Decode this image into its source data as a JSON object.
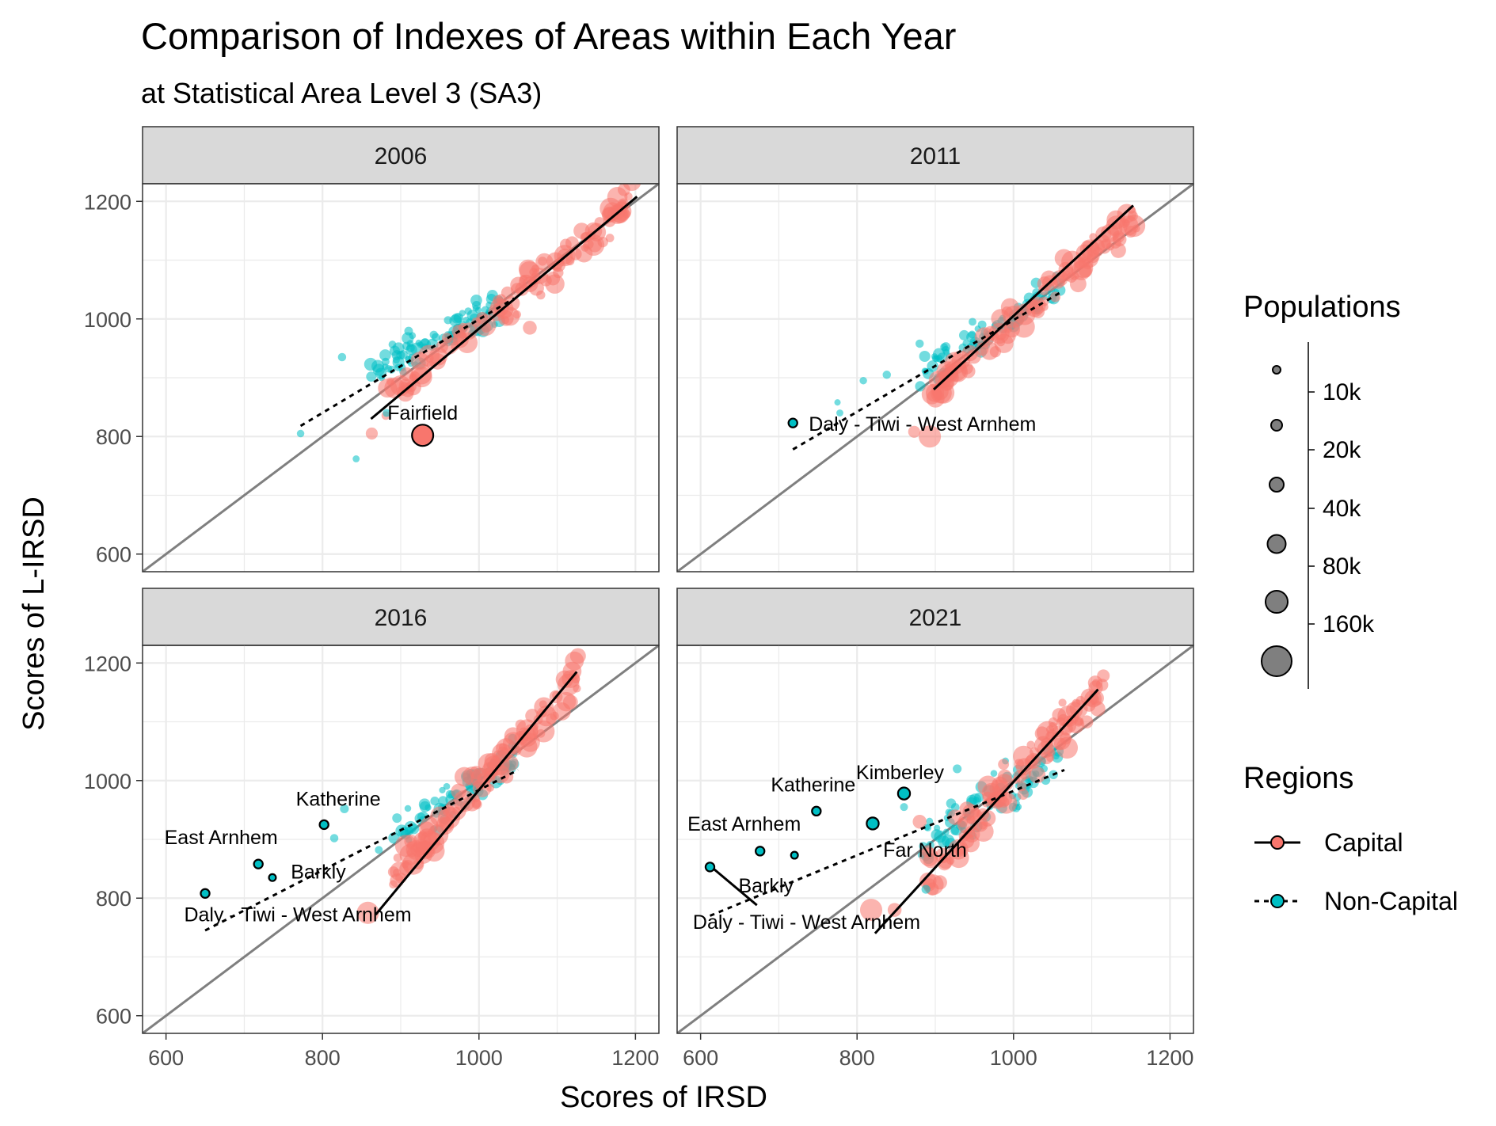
{
  "chart_data": {
    "type": "scatter",
    "title": "Comparison of Indexes of Areas within Each Year",
    "subtitle": "at Statistical Area Level 3 (SA3)",
    "xlabel": "Scores of IRSD",
    "ylabel": "Scores of L-IRSD",
    "xlim": [
      570,
      1230
    ],
    "ylim": [
      570,
      1230
    ],
    "x_ticks": [
      600,
      800,
      1000,
      1200
    ],
    "y_ticks": [
      600,
      800,
      1000,
      1200
    ],
    "grid": true,
    "reference_line": "y = x",
    "colors": {
      "Capital": "#F8766D",
      "Non-Capital": "#00BFC4",
      "reference_line": "#7f7f7f",
      "strip": "#d9d9d9"
    },
    "legend": {
      "size_title": "Populations",
      "size_labels": [
        "10k",
        "20k",
        "40k",
        "80k",
        "160k"
      ],
      "color_title": "Regions",
      "color_labels": [
        "Capital",
        "Non-Capital"
      ],
      "position": "right"
    },
    "panels": [
      {
        "year": "2006",
        "trend": {
          "Capital": [
            [
              862,
              830
            ],
            [
              1202,
              1208
            ]
          ],
          "Non-Capital": [
            [
              772,
              818
            ],
            [
              1045,
              1035
            ]
          ]
        },
        "labeled_points": [
          {
            "name": "Fairfield",
            "region": "Capital",
            "x": 928,
            "y": 802,
            "pop": 180
          }
        ],
        "clouds": [
          {
            "region": "Non-Capital",
            "n": 95,
            "x": [
              860,
              1030
            ],
            "slope": 0.72,
            "intercept": 285,
            "spread": 22,
            "pop": [
              4,
              50
            ]
          },
          {
            "region": "Capital",
            "n": 110,
            "x": [
              880,
              1205
            ],
            "slope": 1.08,
            "intercept": -90,
            "spread": 22,
            "pop": [
              10,
              200
            ]
          }
        ],
        "extra_points": [
          {
            "region": "Non-Capital",
            "x": 772,
            "y": 805,
            "pop": 8
          },
          {
            "region": "Non-Capital",
            "x": 843,
            "y": 762,
            "pop": 6
          },
          {
            "region": "Non-Capital",
            "x": 825,
            "y": 935,
            "pop": 12
          },
          {
            "region": "Non-Capital",
            "x": 882,
            "y": 840,
            "pop": 10
          },
          {
            "region": "Capital",
            "x": 863,
            "y": 805,
            "pop": 40
          },
          {
            "region": "Capital",
            "x": 1065,
            "y": 985,
            "pop": 60
          }
        ]
      },
      {
        "year": "2011",
        "trend": {
          "Capital": [
            [
              898,
              880
            ],
            [
              1153,
              1193
            ]
          ],
          "Non-Capital": [
            [
              718,
              778
            ],
            [
              1060,
              1045
            ]
          ]
        },
        "labeled_points": [
          {
            "name": "Daly - Tiwi - West Arnhem",
            "region": "Non-Capital",
            "x": 718,
            "y": 823,
            "pop": 15
          }
        ],
        "clouds": [
          {
            "region": "Non-Capital",
            "n": 75,
            "x": [
              880,
              1060
            ],
            "slope": 0.75,
            "intercept": 255,
            "spread": 20,
            "pop": [
              4,
              50
            ]
          },
          {
            "region": "Capital",
            "n": 110,
            "x": [
              895,
              1160
            ],
            "slope": 1.15,
            "intercept": -155,
            "spread": 20,
            "pop": [
              10,
              200
            ]
          }
        ],
        "extra_points": [
          {
            "region": "Non-Capital",
            "x": 775,
            "y": 858,
            "pop": 4
          },
          {
            "region": "Non-Capital",
            "x": 808,
            "y": 895,
            "pop": 8
          },
          {
            "region": "Non-Capital",
            "x": 838,
            "y": 905,
            "pop": 12
          },
          {
            "region": "Non-Capital",
            "x": 880,
            "y": 958,
            "pop": 12
          },
          {
            "region": "Non-Capital",
            "x": 778,
            "y": 840,
            "pop": 6
          },
          {
            "region": "Capital",
            "x": 893,
            "y": 800,
            "pop": 200
          },
          {
            "region": "Capital",
            "x": 873,
            "y": 808,
            "pop": 40
          }
        ]
      },
      {
        "year": "2016",
        "trend": {
          "Capital": [
            [
              868,
              772
            ],
            [
              1125,
              1185
            ]
          ],
          "Non-Capital": [
            [
              650,
              745
            ],
            [
              1050,
              1018
            ]
          ]
        },
        "labeled_points": [
          {
            "name": "Katherine",
            "region": "Non-Capital",
            "x": 802,
            "y": 925,
            "pop": 15
          },
          {
            "name": "East Arnhem",
            "region": "Non-Capital",
            "x": 718,
            "y": 858,
            "pop": 15
          },
          {
            "name": "Barkly",
            "region": "Non-Capital",
            "x": 736,
            "y": 835,
            "pop": 6
          },
          {
            "name": "Daly - Tiwi - West Arnhem",
            "region": "Non-Capital",
            "x": 650,
            "y": 808,
            "pop": 15
          }
        ],
        "clouds": [
          {
            "region": "Non-Capital",
            "n": 80,
            "x": [
              890,
              1050
            ],
            "slope": 0.9,
            "intercept": 95,
            "spread": 25,
            "pop": [
              4,
              50
            ]
          },
          {
            "region": "Capital",
            "n": 110,
            "x": [
              890,
              1130
            ],
            "slope": 1.45,
            "intercept": -455,
            "spread": 25,
            "pop": [
              10,
              200
            ]
          }
        ],
        "extra_points": [
          {
            "region": "Non-Capital",
            "x": 815,
            "y": 902,
            "pop": 12
          },
          {
            "region": "Non-Capital",
            "x": 828,
            "y": 952,
            "pop": 15
          },
          {
            "region": "Non-Capital",
            "x": 872,
            "y": 882,
            "pop": 10
          },
          {
            "region": "Capital",
            "x": 858,
            "y": 775,
            "pop": 200
          },
          {
            "region": "Capital",
            "x": 895,
            "y": 830,
            "pop": 60
          }
        ]
      },
      {
        "year": "2021",
        "trend": {
          "Capital": [
            [
              823,
              740
            ],
            [
              1108,
              1155
            ]
          ],
          "Non-Capital": [
            [
              612,
              770
            ],
            [
              1065,
              1018
            ]
          ],
          "Capital_short": [
            [
              612,
              855
            ],
            [
              672,
              788
            ]
          ]
        },
        "labeled_points": [
          {
            "name": "Kimberley",
            "region": "Non-Capital",
            "x": 860,
            "y": 978,
            "pop": 40
          },
          {
            "name": "Katherine",
            "region": "Non-Capital",
            "x": 748,
            "y": 948,
            "pop": 15
          },
          {
            "name": "East Arnhem",
            "region": "Non-Capital",
            "x": 676,
            "y": 880,
            "pop": 15
          },
          {
            "name": "Far North",
            "region": "Non-Capital",
            "x": 820,
            "y": 927,
            "pop": 40
          },
          {
            "name": "Barkly",
            "region": "Non-Capital",
            "x": 720,
            "y": 873,
            "pop": 6
          },
          {
            "name": "Daly - Tiwi - West Arnhem",
            "region": "Non-Capital",
            "x": 612,
            "y": 853,
            "pop": 15
          }
        ],
        "clouds": [
          {
            "region": "Non-Capital",
            "n": 80,
            "x": [
              880,
              1060
            ],
            "slope": 0.85,
            "intercept": 140,
            "spread": 25,
            "pop": [
              4,
              50
            ]
          },
          {
            "region": "Capital",
            "n": 115,
            "x": [
              890,
              1115
            ],
            "slope": 1.4,
            "intercept": -400,
            "spread": 28,
            "pop": [
              10,
              200
            ]
          }
        ],
        "extra_points": [
          {
            "region": "Non-Capital",
            "x": 928,
            "y": 1020,
            "pop": 15
          },
          {
            "region": "Non-Capital",
            "x": 888,
            "y": 815,
            "pop": 15
          },
          {
            "region": "Non-Capital",
            "x": 860,
            "y": 955,
            "pop": 10
          },
          {
            "region": "Capital",
            "x": 818,
            "y": 780,
            "pop": 200
          },
          {
            "region": "Capital",
            "x": 848,
            "y": 780,
            "pop": 60
          },
          {
            "region": "Capital",
            "x": 880,
            "y": 930,
            "pop": 60
          }
        ]
      }
    ]
  }
}
